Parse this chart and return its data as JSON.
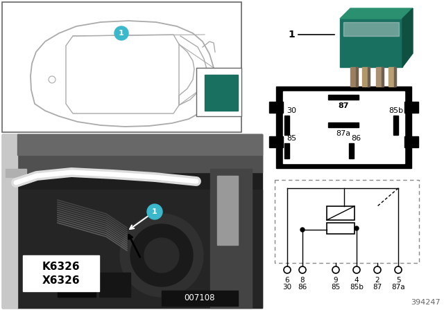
{
  "bg_color": "#ffffff",
  "relay_green_color": "#1a7060",
  "relay_green_light": "#2a9070",
  "callout_color": "#3bb8cc",
  "car_outline_color": "#aaaaaa",
  "k_label": "K6326",
  "x_label": "X6326",
  "part_number": "394247",
  "ref_number": "007108",
  "pin_labels": [
    "87",
    "30",
    "87a",
    "85b",
    "85",
    "86"
  ],
  "circuit_pins_top": [
    "6",
    "8",
    "9",
    "4",
    "2",
    "5"
  ],
  "circuit_pins_bot": [
    "30",
    "86",
    "85",
    "85b",
    "87",
    "87a"
  ],
  "photo_bg": "#2a2a2a",
  "photo_mid": "#404040",
  "photo_light": "#888888",
  "photo_white": "#cccccc",
  "label_box_color": "#ffffff",
  "ref_box_color": "#111111"
}
